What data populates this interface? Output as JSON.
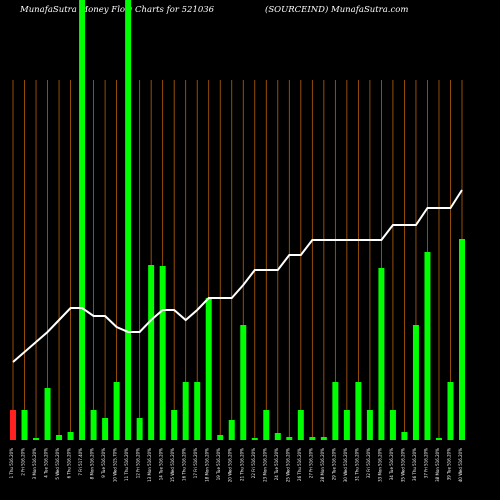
{
  "chart_data": {
    "type": "bar-line",
    "title": "MunafaSutra  Money Flow  Charts for 521036",
    "subtitle": "(SOURCEIND) MunafaSutra.com",
    "categories": [
      "1 Thu 516.20%",
      "2 Fri 516.20%",
      "3 Mon 516.20%",
      "4 Tue 516.20%",
      "5 Wed 516.20%",
      "6 Thu 516.20%",
      "7 Fri 517.40%",
      "8 Mon 516.20%",
      "9 Tue 516.20%",
      "10 Wed 515.70%",
      "11 Thu 516.20%",
      "12 Fri 516.20%",
      "13 Mon 516.20%",
      "14 Tue 516.20%",
      "15 Wed 516.20%",
      "16 Thu 516.20%",
      "17 Fri 516.20%",
      "18 Mon 516.20%",
      "19 Tue 516.20%",
      "20 Wed 516.20%",
      "21 Thu 516.20%",
      "22 Fri 516.20%",
      "23 Mon 516.20%",
      "24 Tue 516.20%",
      "25 Wed 516.20%",
      "26 Thu 516.20%",
      "27 Fri 516.20%",
      "28 Mon 516.20%",
      "29 Tue 516.20%",
      "30 Wed 516.20%",
      "31 Thu 516.20%",
      "32 Fri 516.20%",
      "33 Mon 516.20%",
      "34 Tue 516.20%",
      "35 Wed 516.20%",
      "36 Thu 516.20%",
      "37 Fri 516.20%",
      "38 Mon 516.20%",
      "39 Tue 516.20%",
      "40 Wed 516.20%"
    ],
    "bar_colors": [
      "#ff2020",
      "#00ff00"
    ],
    "bars": {
      "name": "Money Flow",
      "values": [
        30,
        30,
        2,
        52,
        5,
        8,
        440,
        30,
        22,
        58,
        440,
        22,
        175,
        174,
        30,
        58,
        58,
        142,
        5,
        20,
        115,
        2,
        30,
        7,
        3,
        30,
        3,
        3,
        58,
        30,
        58,
        30,
        172,
        30,
        8,
        115,
        188,
        2,
        58,
        201
      ]
    },
    "line": {
      "name": "Trend",
      "color": "#ffffff",
      "values": [
        78,
        88,
        98,
        108,
        120,
        132,
        132,
        124,
        124,
        113,
        108,
        108,
        120,
        130,
        130,
        120,
        130,
        142,
        142,
        142,
        155,
        170,
        170,
        170,
        185,
        185,
        200,
        200,
        200,
        200,
        200,
        200,
        200,
        215,
        215,
        215,
        232,
        232,
        232,
        250
      ]
    },
    "ylim": [
      0,
      440
    ]
  }
}
